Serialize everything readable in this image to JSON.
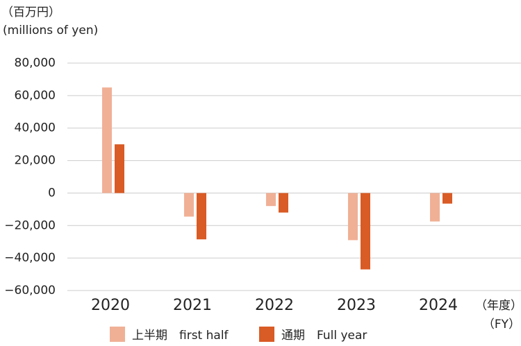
{
  "chart_data": {
    "type": "bar",
    "unit_label": "（百万円）",
    "unit_label_en": "(millions of yen)",
    "x_label": "（年度）",
    "x_label_en": "（FY）",
    "categories": [
      "2020",
      "2021",
      "2022",
      "2023",
      "2024"
    ],
    "series": [
      {
        "name": "上半期　first half",
        "color": "#f0b096",
        "values": [
          65000,
          -14500,
          -8000,
          -29000,
          -17500
        ]
      },
      {
        "name": "通期　Full year",
        "color": "#d95b25",
        "values": [
          30000,
          -28500,
          -12000,
          -47000,
          -6500
        ]
      }
    ],
    "ylim": [
      -60000,
      80000
    ],
    "yticks": [
      {
        "value": -60000,
        "label": "−60,000"
      },
      {
        "value": -40000,
        "label": "−40,000"
      },
      {
        "value": -20000,
        "label": "−20,000"
      },
      0,
      {
        "value": 20000,
        "label": "20,000"
      },
      {
        "value": 40000,
        "label": "40,000"
      },
      {
        "value": 60000,
        "label": "60,000"
      },
      {
        "value": 80000,
        "label": "80,000"
      }
    ],
    "grid": true
  }
}
